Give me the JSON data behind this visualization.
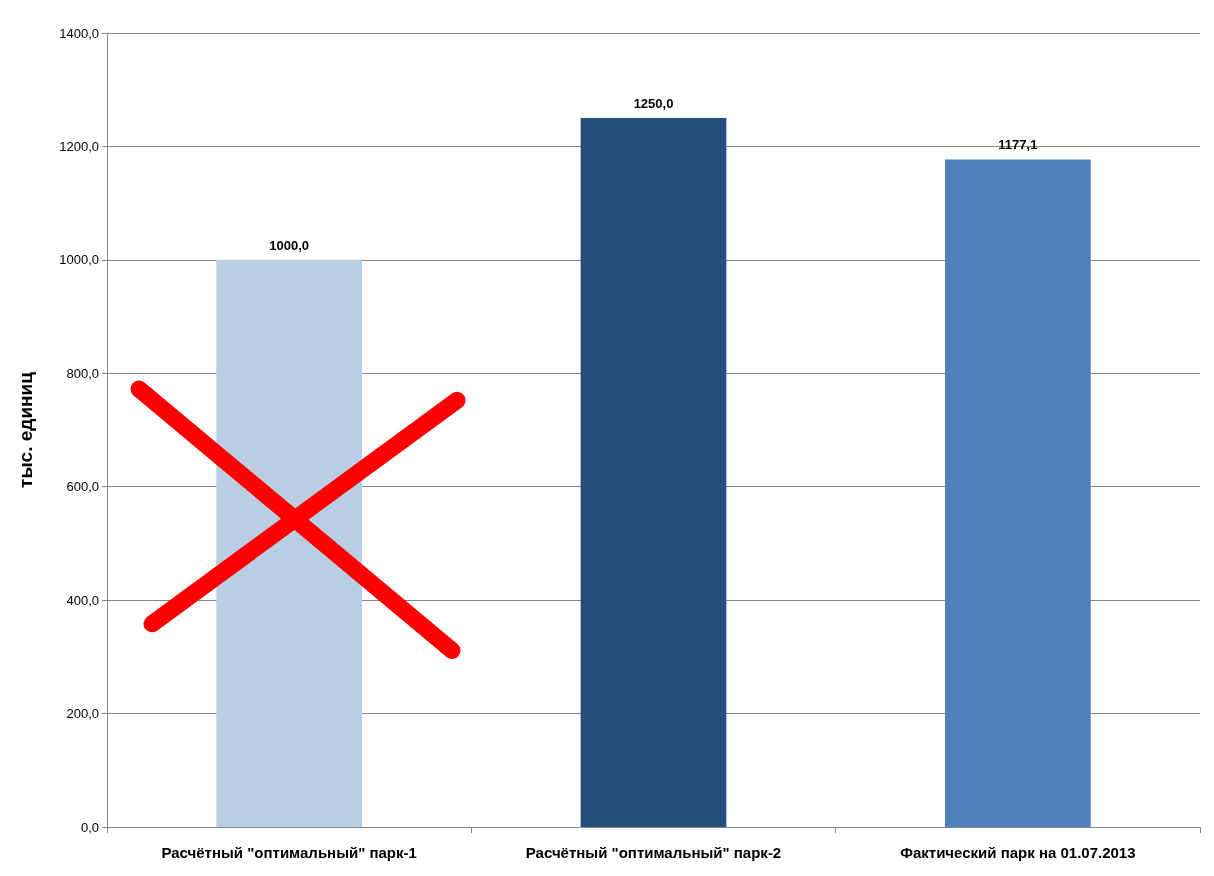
{
  "chart_data": {
    "type": "bar",
    "ylabel": "тыс. единиц",
    "categories": [
      "Расчётный \"оптимальный\" парк-1",
      "Расчётный \"оптимальный\" парк-2",
      "Фактический парк на 01.07.2013"
    ],
    "values": [
      1000,
      1250,
      1177.1
    ],
    "colors": [
      "#b9cde5",
      "#254f7e",
      "#4f81bd"
    ],
    "value_labels": [
      "1000,0",
      "1250,0",
      "1177,1"
    ],
    "ylim": [
      0,
      1400
    ],
    "yticks": [
      {
        "value": 0,
        "label": "0,0"
      },
      {
        "value": 200,
        "label": "200,0"
      },
      {
        "value": 400,
        "label": "400,0"
      },
      {
        "value": 600,
        "label": "600,0"
      },
      {
        "value": 800,
        "label": "800,0"
      },
      {
        "value": 1000,
        "label": "1000,0"
      },
      {
        "value": 1200,
        "label": "1200,0"
      },
      {
        "value": 1400,
        "label": "1400,0"
      }
    ],
    "grid": "y"
  }
}
